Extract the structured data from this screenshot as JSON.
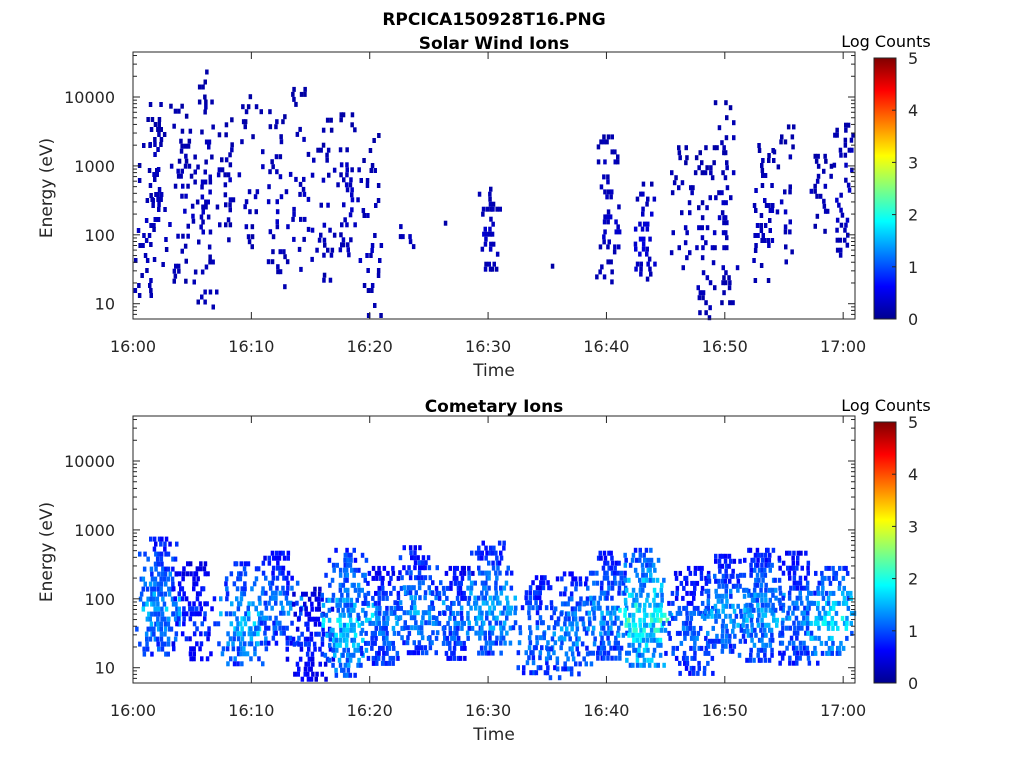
{
  "figure": {
    "title": "RPCICA150928T16.PNG"
  },
  "colormap": {
    "name": "jet",
    "stops": [
      "#00008f",
      "#0000ff",
      "#0080ff",
      "#00ffff",
      "#80ff80",
      "#ffff00",
      "#ff8000",
      "#ff0000",
      "#800000"
    ]
  },
  "chart_data": [
    {
      "type": "heatmap",
      "title": "Solar Wind Ions",
      "xlabel": "Time",
      "ylabel": "Energy (eV)",
      "y_scale": "log",
      "xlim": [
        "16:00",
        "17:01"
      ],
      "ylim": [
        6,
        45000
      ],
      "xticks": [
        "16:00",
        "16:10",
        "16:20",
        "16:30",
        "16:40",
        "16:50",
        "17:00"
      ],
      "yticks": [
        "10",
        "100",
        "1000",
        "10000"
      ],
      "colorbar": {
        "label": "Log Counts",
        "range": [
          0,
          5
        ],
        "ticks": [
          "0",
          "1",
          "2",
          "3",
          "4",
          "5"
        ]
      },
      "clusters": [
        {
          "time": "16:01",
          "emin": 10,
          "emax": 3000,
          "log_counts": 0.3,
          "density": 0.35
        },
        {
          "time": "16:02",
          "emin": 30,
          "emax": 10000,
          "log_counts": 0.3,
          "density": 0.35
        },
        {
          "time": "16:04",
          "emin": 20,
          "emax": 8000,
          "log_counts": 0.3,
          "density": 0.3
        },
        {
          "time": "16:06",
          "emin": 6,
          "emax": 35000,
          "log_counts": 0.3,
          "density": 0.3
        },
        {
          "time": "16:08",
          "emin": 80,
          "emax": 6000,
          "log_counts": 0.3,
          "density": 0.25
        },
        {
          "time": "16:10",
          "emin": 60,
          "emax": 11000,
          "log_counts": 0.3,
          "density": 0.25
        },
        {
          "time": "16:12",
          "emin": 15,
          "emax": 11000,
          "log_counts": 0.3,
          "density": 0.25
        },
        {
          "time": "16:14",
          "emin": 30,
          "emax": 14000,
          "log_counts": 0.3,
          "density": 0.25
        },
        {
          "time": "16:16",
          "emin": 20,
          "emax": 5000,
          "log_counts": 0.3,
          "density": 0.25
        },
        {
          "time": "16:18",
          "emin": 40,
          "emax": 6000,
          "log_counts": 0.35,
          "density": 0.4
        },
        {
          "time": "16:20",
          "emin": 6,
          "emax": 3000,
          "log_counts": 0.3,
          "density": 0.25
        },
        {
          "time": "16:23",
          "emin": 40,
          "emax": 200,
          "log_counts": 0.3,
          "density": 0.25
        },
        {
          "time": "16:26",
          "emin": 130,
          "emax": 160,
          "log_counts": 0.3,
          "density": 0.2
        },
        {
          "time": "16:30",
          "emin": 30,
          "emax": 500,
          "log_counts": 0.35,
          "density": 0.45
        },
        {
          "time": "16:35",
          "emin": 35,
          "emax": 45,
          "log_counts": 0.3,
          "density": 0.2
        },
        {
          "time": "16:40",
          "emin": 20,
          "emax": 4000,
          "log_counts": 0.35,
          "density": 0.45
        },
        {
          "time": "16:43",
          "emin": 20,
          "emax": 700,
          "log_counts": 0.45,
          "density": 0.5
        },
        {
          "time": "16:46",
          "emin": 30,
          "emax": 2000,
          "log_counts": 0.3,
          "density": 0.3
        },
        {
          "time": "16:48",
          "emin": 6,
          "emax": 2000,
          "log_counts": 0.3,
          "density": 0.3
        },
        {
          "time": "16:50",
          "emin": 10,
          "emax": 9000,
          "log_counts": 0.3,
          "density": 0.3
        },
        {
          "time": "16:53",
          "emin": 20,
          "emax": 3000,
          "log_counts": 0.3,
          "density": 0.3
        },
        {
          "time": "16:55",
          "emin": 40,
          "emax": 4000,
          "log_counts": 0.3,
          "density": 0.3
        },
        {
          "time": "16:58",
          "emin": 100,
          "emax": 1500,
          "log_counts": 0.3,
          "density": 0.25
        },
        {
          "time": "17:00",
          "emin": 50,
          "emax": 5000,
          "log_counts": 0.35,
          "density": 0.4
        }
      ]
    },
    {
      "type": "heatmap",
      "title": "Cometary Ions",
      "xlabel": "Time",
      "ylabel": "Energy (eV)",
      "y_scale": "log",
      "xlim": [
        "16:00",
        "17:01"
      ],
      "ylim": [
        6,
        45000
      ],
      "xticks": [
        "16:00",
        "16:10",
        "16:20",
        "16:30",
        "16:40",
        "16:50",
        "17:00"
      ],
      "yticks": [
        "10",
        "100",
        "1000",
        "10000"
      ],
      "colorbar": {
        "label": "Log Counts",
        "range": [
          0,
          5
        ],
        "ticks": [
          "0",
          "1",
          "2",
          "3",
          "4",
          "5"
        ]
      },
      "clusters": [
        {
          "time": "16:02",
          "emin": 15,
          "emax": 800,
          "log_counts": 1.6,
          "density": 0.8
        },
        {
          "time": "16:05",
          "emin": 12,
          "emax": 350,
          "log_counts": 1.0,
          "density": 0.55
        },
        {
          "time": "16:09",
          "emin": 10,
          "emax": 350,
          "log_counts": 1.7,
          "density": 0.7
        },
        {
          "time": "16:12",
          "emin": 20,
          "emax": 500,
          "log_counts": 1.4,
          "density": 0.75
        },
        {
          "time": "16:15",
          "emin": 6,
          "emax": 150,
          "log_counts": 0.9,
          "density": 0.6
        },
        {
          "time": "16:18",
          "emin": 7,
          "emax": 550,
          "log_counts": 1.8,
          "density": 0.8
        },
        {
          "time": "16:21",
          "emin": 10,
          "emax": 300,
          "log_counts": 1.4,
          "density": 0.75
        },
        {
          "time": "16:24",
          "emin": 15,
          "emax": 600,
          "log_counts": 1.5,
          "density": 0.75
        },
        {
          "time": "16:27",
          "emin": 12,
          "emax": 300,
          "log_counts": 1.3,
          "density": 0.65
        },
        {
          "time": "16:30",
          "emin": 15,
          "emax": 700,
          "log_counts": 1.6,
          "density": 0.75
        },
        {
          "time": "16:34",
          "emin": 7,
          "emax": 220,
          "log_counts": 1.4,
          "density": 0.6
        },
        {
          "time": "16:37",
          "emin": 8,
          "emax": 250,
          "log_counts": 1.5,
          "density": 0.65
        },
        {
          "time": "16:40",
          "emin": 12,
          "emax": 500,
          "log_counts": 1.5,
          "density": 0.8
        },
        {
          "time": "16:43",
          "emin": 10,
          "emax": 550,
          "log_counts": 2.2,
          "density": 0.85
        },
        {
          "time": "16:47",
          "emin": 7,
          "emax": 300,
          "log_counts": 1.3,
          "density": 0.65
        },
        {
          "time": "16:50",
          "emin": 15,
          "emax": 450,
          "log_counts": 1.5,
          "density": 0.75
        },
        {
          "time": "16:53",
          "emin": 12,
          "emax": 550,
          "log_counts": 1.6,
          "density": 0.75
        },
        {
          "time": "16:56",
          "emin": 10,
          "emax": 500,
          "log_counts": 1.4,
          "density": 0.7
        },
        {
          "time": "16:59",
          "emin": 15,
          "emax": 300,
          "log_counts": 1.9,
          "density": 0.65
        }
      ]
    }
  ]
}
